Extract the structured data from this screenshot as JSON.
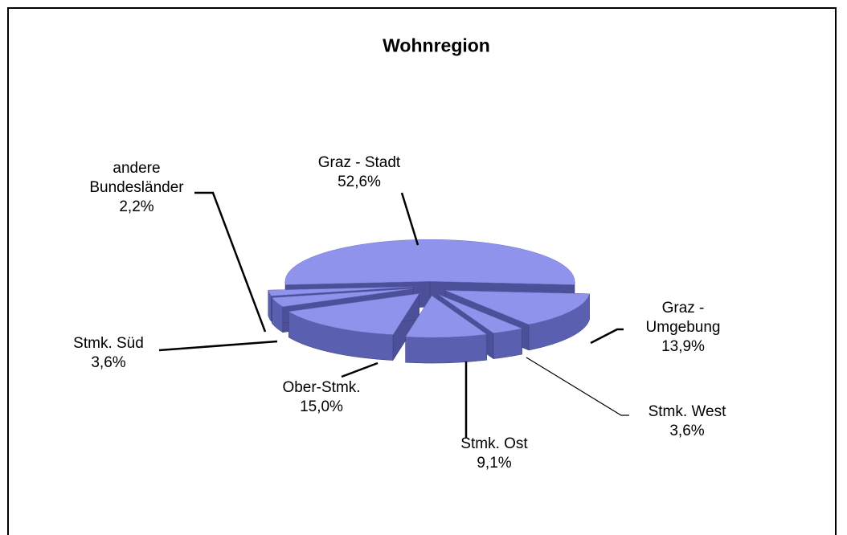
{
  "chart_data": {
    "type": "pie3d",
    "title": "Wohnregion",
    "categories": [
      "Graz - Stadt",
      "Graz - Umgebung",
      "Stmk. West",
      "Stmk. Ost",
      "Ober-Stmk.",
      "Stmk. Süd",
      "andere Bundesländer"
    ],
    "values": [
      52.6,
      13.9,
      3.6,
      9.1,
      15.0,
      3.6,
      2.2
    ],
    "value_labels": [
      "52,6%",
      "13,9%",
      "3,6%",
      "9,1%",
      "15,0%",
      "3,6%",
      "2,2%"
    ],
    "color": "#8f93ec"
  }
}
